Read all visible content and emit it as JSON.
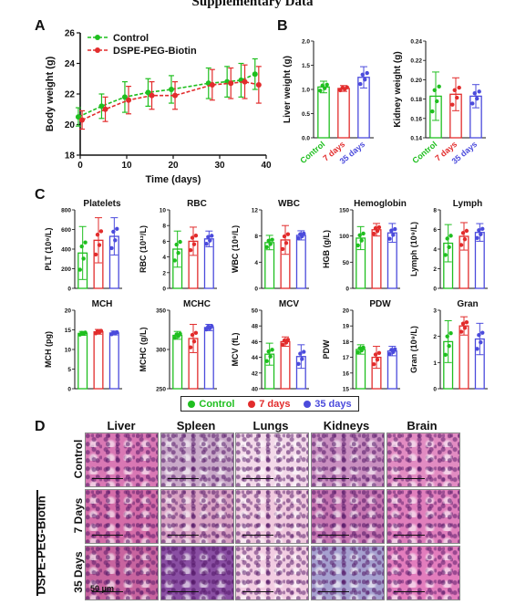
{
  "header": "Supplementary Data",
  "panels": {
    "a": "A",
    "b": "B",
    "c": "C",
    "d": "D"
  },
  "colors": {
    "control": "#1fbf1f",
    "d7": "#e22c2c",
    "d35": "#4b4bdc"
  },
  "chart_data": [
    {
      "type": "line",
      "panel": "A",
      "xlabel": "Time (days)",
      "ylabel": "Body weight (g)",
      "xlim": [
        0,
        40
      ],
      "ylim": [
        18,
        26
      ],
      "xticks": [
        "0",
        "10",
        "20",
        "30",
        "40"
      ],
      "yticks": [
        "18",
        "20",
        "22",
        "24",
        "26"
      ],
      "series": [
        {
          "name": "Control",
          "color": "#1fbf1f",
          "x": [
            0,
            5,
            10,
            15,
            20,
            28,
            32,
            35,
            38
          ],
          "y": [
            20.5,
            21.2,
            21.8,
            22.1,
            22.3,
            22.7,
            22.8,
            22.9,
            23.3
          ],
          "err": [
            0.6,
            0.8,
            1.0,
            0.9,
            0.9,
            1.0,
            1.0,
            1.1,
            1.0
          ]
        },
        {
          "name": "DSPE-PEG-Biotin",
          "color": "#e22c2c",
          "x": [
            0,
            5,
            10,
            15,
            20,
            28,
            32,
            35,
            38
          ],
          "y": [
            20.3,
            21.0,
            21.6,
            21.9,
            21.9,
            22.6,
            22.7,
            22.8,
            22.6
          ],
          "err": [
            0.6,
            0.8,
            0.9,
            0.9,
            0.9,
            1.0,
            1.0,
            1.1,
            1.2
          ]
        }
      ]
    },
    {
      "type": "bar",
      "panel": "B",
      "title": "",
      "ylabel": "Liver weight (g)",
      "categories": [
        "Control",
        "7 days",
        "35 days"
      ],
      "values": [
        1.05,
        1.02,
        1.25
      ],
      "err": [
        0.12,
        0.06,
        0.22
      ],
      "ylim": [
        0,
        2.0
      ],
      "yticks": [
        "0.0",
        "0.5",
        "1.0",
        "1.5",
        "2.0"
      ]
    },
    {
      "type": "bar",
      "panel": "B",
      "title": "",
      "ylabel": "Kidney weight (g)",
      "categories": [
        "Control",
        "7 days",
        "35 days"
      ],
      "values": [
        0.183,
        0.185,
        0.183
      ],
      "err": [
        0.025,
        0.017,
        0.012
      ],
      "ylim": [
        0.14,
        0.24
      ],
      "yticks": [
        "0.14",
        "0.16",
        "0.18",
        "0.20",
        "0.22",
        "0.24"
      ]
    },
    {
      "type": "bar",
      "panel": "C",
      "title": "Platelets",
      "ylabel": "PLT (10⁹/L)",
      "categories": [
        "Control",
        "7 days",
        "35 days"
      ],
      "values": [
        360,
        490,
        530
      ],
      "err": [
        270,
        230,
        190
      ],
      "ylim": [
        0,
        800
      ],
      "yticks": [
        "0",
        "200",
        "400",
        "600",
        "800"
      ]
    },
    {
      "type": "bar",
      "panel": "C",
      "title": "RBC",
      "ylabel": "RBC (10¹²/L)",
      "categories": [
        "Control",
        "7 days",
        "35 days"
      ],
      "values": [
        5.0,
        6.0,
        6.3
      ],
      "err": [
        2.3,
        1.8,
        1.0
      ],
      "ylim": [
        0,
        10
      ],
      "yticks": [
        "0",
        "2",
        "4",
        "6",
        "8",
        "10"
      ]
    },
    {
      "type": "bar",
      "panel": "C",
      "title": "WBC",
      "ylabel": "WBC (10⁹/L)",
      "categories": [
        "Control",
        "7 days",
        "35 days"
      ],
      "values": [
        7.0,
        7.4,
        8.1
      ],
      "err": [
        1.1,
        2.2,
        0.7
      ],
      "ylim": [
        0,
        12
      ],
      "yticks": [
        "0",
        "4",
        "8",
        "12"
      ]
    },
    {
      "type": "bar",
      "panel": "C",
      "title": "Hemoglobin",
      "ylabel": "HGB (g/L)",
      "categories": [
        "Control",
        "7 days",
        "35 days"
      ],
      "values": [
        96,
        112,
        106
      ],
      "err": [
        22,
        12,
        18
      ],
      "ylim": [
        0,
        150
      ],
      "yticks": [
        "0",
        "50",
        "100",
        "150"
      ]
    },
    {
      "type": "bar",
      "panel": "C",
      "title": "Lymph",
      "ylabel": "Lymph (10⁹/L)",
      "categories": [
        "Control",
        "7 days",
        "35 days"
      ],
      "values": [
        4.6,
        5.3,
        5.7
      ],
      "err": [
        1.9,
        1.4,
        0.9
      ],
      "ylim": [
        0,
        8
      ],
      "yticks": [
        "0",
        "2",
        "4",
        "6",
        "8"
      ]
    },
    {
      "type": "bar",
      "panel": "C",
      "title": "MCH",
      "ylabel": "MCH (pg)",
      "categories": [
        "Control",
        "7 days",
        "35 days"
      ],
      "values": [
        14.1,
        14.5,
        14.2
      ],
      "err": [
        0.5,
        0.6,
        0.5
      ],
      "ylim": [
        0,
        20
      ],
      "yticks": [
        "0",
        "5",
        "10",
        "15",
        "20"
      ]
    },
    {
      "type": "bar",
      "panel": "C",
      "title": "MCHC",
      "ylabel": "MCHC (g/L)",
      "categories": [
        "Control",
        "7 days",
        "35 days"
      ],
      "values": [
        318,
        314,
        328
      ],
      "err": [
        5,
        18,
        4
      ],
      "ylim": [
        250,
        350
      ],
      "yticks": [
        "250",
        "300",
        "350"
      ]
    },
    {
      "type": "bar",
      "panel": "C",
      "title": "MCV",
      "ylabel": "MCV (fL)",
      "categories": [
        "Control",
        "7 days",
        "35 days"
      ],
      "values": [
        44.4,
        46.0,
        44.1
      ],
      "err": [
        1.4,
        0.6,
        1.5
      ],
      "ylim": [
        40,
        50
      ],
      "yticks": [
        "40",
        "42",
        "44",
        "46",
        "48",
        "50"
      ]
    },
    {
      "type": "bar",
      "panel": "C",
      "title": "PDW",
      "ylabel": "PDW",
      "categories": [
        "Control",
        "7 days",
        "35 days"
      ],
      "values": [
        17.5,
        17.0,
        17.4
      ],
      "err": [
        0.3,
        0.7,
        0.3
      ],
      "ylim": [
        15,
        20
      ],
      "yticks": [
        "15",
        "16",
        "17",
        "18",
        "19",
        "20"
      ]
    },
    {
      "type": "bar",
      "panel": "C",
      "title": "Gran",
      "ylabel": "Gran (10⁹/L)",
      "categories": [
        "Control",
        "7 days",
        "35 days"
      ],
      "values": [
        1.8,
        2.4,
        1.9
      ],
      "err": [
        0.8,
        0.35,
        0.6
      ],
      "ylim": [
        0,
        3
      ],
      "yticks": [
        "0",
        "1",
        "2",
        "3"
      ]
    }
  ],
  "legend_c": [
    "Control",
    "7 days",
    "35 days"
  ],
  "histology": {
    "columns": [
      "Liver",
      "Spleen",
      "Lungs",
      "Kidneys",
      "Brain"
    ],
    "row_labels": [
      "Control",
      "7 Days",
      "35 Days"
    ],
    "group_label": "DSPE-PEG-Biotin",
    "scale_label": "50 μm"
  }
}
